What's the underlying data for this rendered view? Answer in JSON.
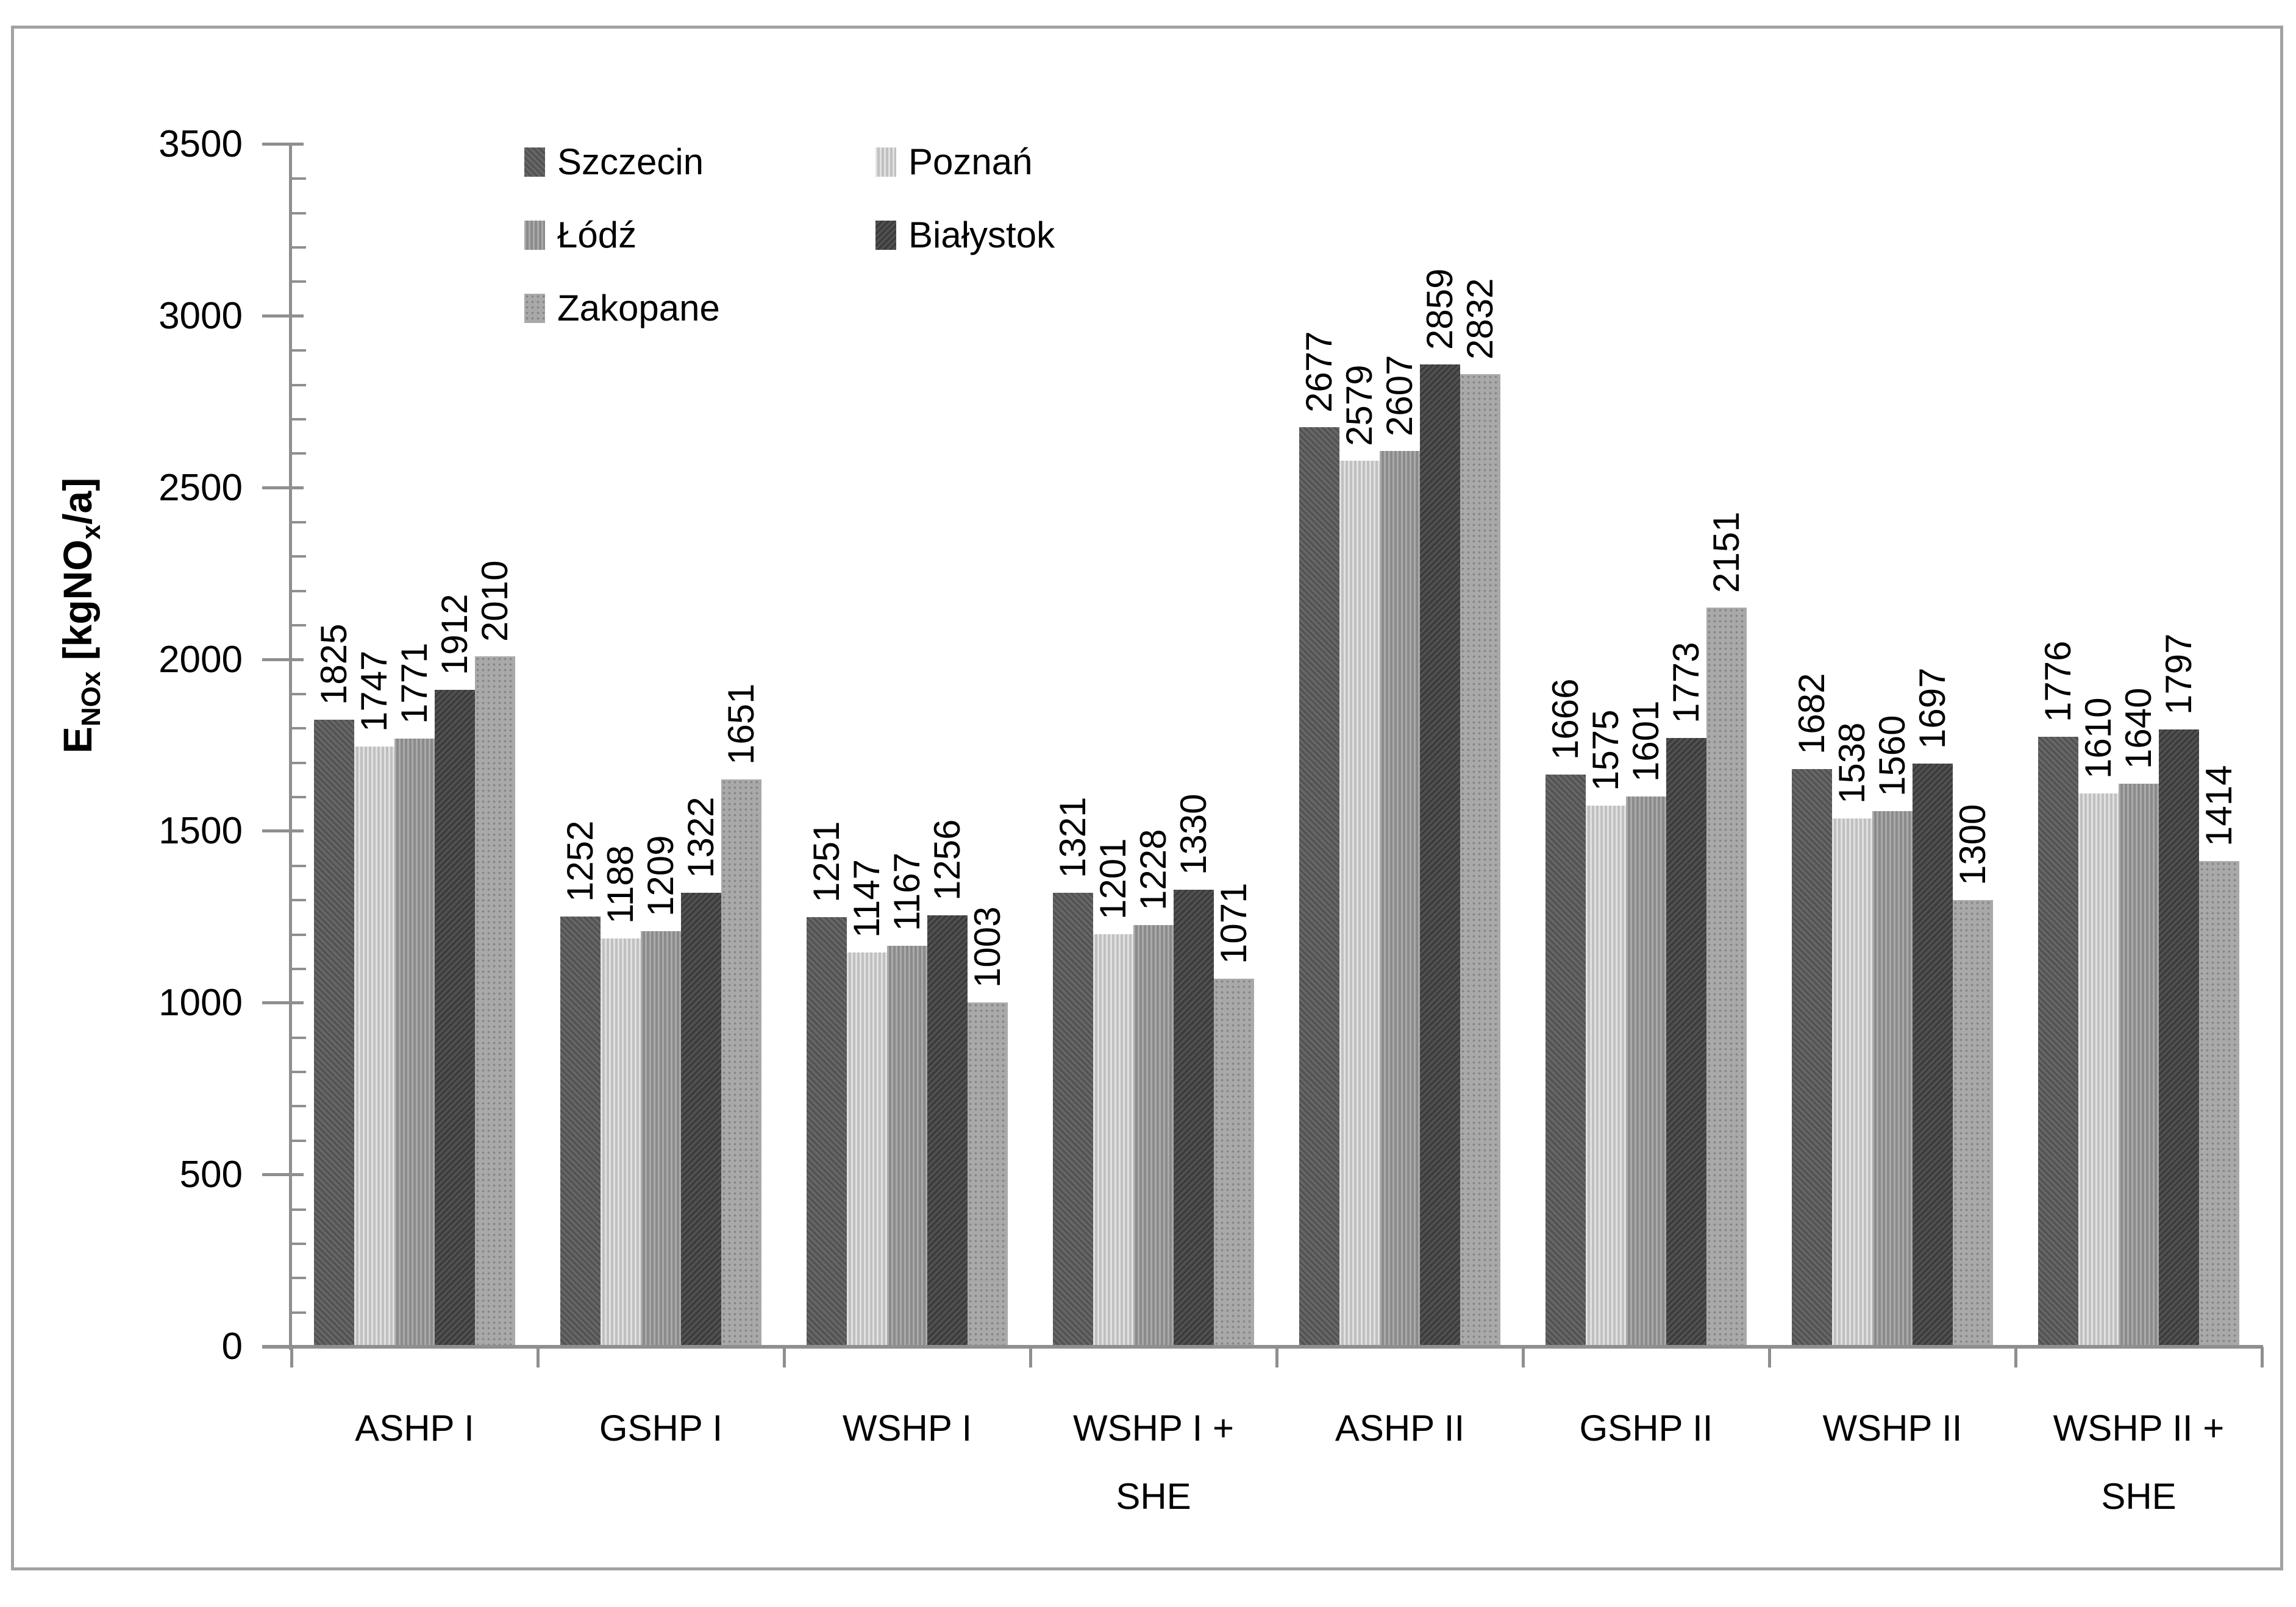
{
  "chart_data": {
    "type": "bar",
    "title": "",
    "y_axis": {
      "title_parts": {
        "symbol": "E",
        "symbol_sub": "NOx",
        "unit_pre": " [kgNO",
        "unit_sub": "x",
        "unit_post": "/a]"
      },
      "min": 0,
      "max": 3500,
      "major_step": 500,
      "minor_step": 100,
      "tick_labels": [
        "0",
        "500",
        "1000",
        "1500",
        "2000",
        "2500",
        "3000",
        "3500"
      ]
    },
    "categories": [
      [
        "ASHP I"
      ],
      [
        "GSHP I"
      ],
      [
        "WSHP I"
      ],
      [
        "WSHP I +",
        "SHE"
      ],
      [
        "ASHP II"
      ],
      [
        "GSHP II"
      ],
      [
        "WSHP II"
      ],
      [
        "WSHP II +",
        "SHE"
      ]
    ],
    "series": [
      {
        "name": "Szczecin",
        "color": "#5e5e5e",
        "values": [
          1825,
          1252,
          1251,
          1321,
          2677,
          1666,
          1682,
          1776
        ]
      },
      {
        "name": "Poznań",
        "color": "#c8c8c8",
        "values": [
          1747,
          1188,
          1147,
          1201,
          2579,
          1575,
          1538,
          1610
        ]
      },
      {
        "name": "Łódź",
        "color": "#929292",
        "values": [
          1771,
          1209,
          1167,
          1228,
          2607,
          1601,
          1560,
          1640
        ]
      },
      {
        "name": "Białystok",
        "color": "#474747",
        "values": [
          1912,
          1322,
          1256,
          1330,
          2859,
          1773,
          1697,
          1797
        ]
      },
      {
        "name": "Zakopane",
        "color": "#a9a9a9",
        "values": [
          2010,
          1651,
          1003,
          1071,
          2832,
          2151,
          1300,
          1414
        ]
      }
    ],
    "bar_value_labels": true,
    "grid": false,
    "legend_position": "top-left-inside"
  },
  "colors": {
    "axis": "#8f8f8f",
    "frame": "#a2a2a2",
    "text": "#000000",
    "background": "#ffffff"
  }
}
